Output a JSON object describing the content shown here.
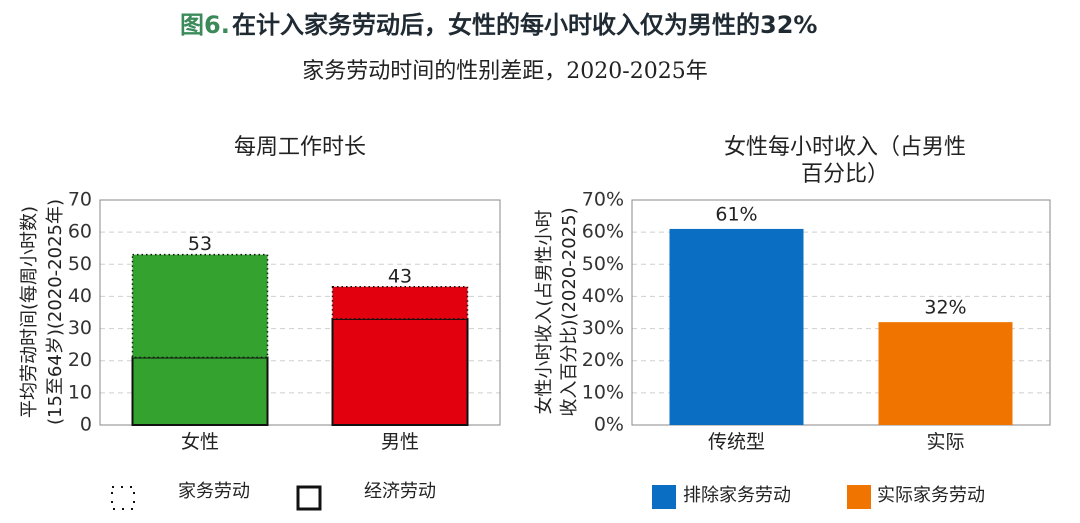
{
  "figure_label": "图6.",
  "title": "在计入家务劳动后，女性的每小时收入仅为男性的32%",
  "subtitle": "家务劳动时间的性别差距，2020-2025年",
  "chart_data": [
    {
      "type": "stacked_bar",
      "title": [
        "每周工作时长"
      ],
      "ylabel": [
        "平均劳动时间(每周小时数)",
        "(15至64岁)(2020-2025年)"
      ],
      "categories": [
        "女性",
        "男性"
      ],
      "category_colors": [
        "#34a22f",
        "#e2000f"
      ],
      "series": [
        {
          "name": "家务劳动",
          "style": "dotted",
          "values": [
            32,
            10
          ]
        },
        {
          "name": "经济劳动",
          "style": "solid",
          "values": [
            21,
            33
          ]
        }
      ],
      "totals": [
        53,
        43
      ],
      "ylim": [
        0,
        70
      ],
      "yticks": [
        0,
        10,
        20,
        30,
        40,
        50,
        60,
        70
      ],
      "grid": true
    },
    {
      "type": "bar",
      "title": [
        "女性每小时收入（占男性",
        "百分比）"
      ],
      "ylabel": [
        "女性小时收入(占男性小时",
        "收入百分比)(2020-2025)"
      ],
      "categories": [
        "传统型",
        "实际"
      ],
      "series": [
        {
          "name": "排除家务劳动",
          "color": "#0a6fc2",
          "values": [
            61,
            null
          ],
          "value_labels": [
            "61%",
            null
          ]
        },
        {
          "name": "实际家务劳动",
          "color": "#ef7400",
          "values": [
            null,
            32
          ],
          "value_labels": [
            null,
            "32%"
          ]
        }
      ],
      "ylim": [
        0,
        70
      ],
      "yticks": [
        {
          "value": 0,
          "label": "0%"
        },
        {
          "value": 10,
          "label": "10%"
        },
        {
          "value": 20,
          "label": "20%"
        },
        {
          "value": 30,
          "label": "30%"
        },
        {
          "value": 40,
          "label": "40%"
        },
        {
          "value": 50,
          "label": "50%"
        },
        {
          "value": 60,
          "label": "60%"
        },
        {
          "value": 70,
          "label": "70%"
        }
      ],
      "grid": true
    }
  ]
}
